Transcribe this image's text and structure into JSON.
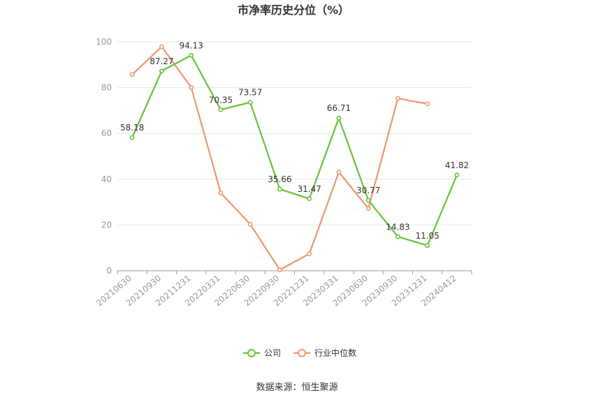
{
  "chart_data": {
    "type": "line",
    "title": "市净率历史分位（%）",
    "source": "数据来源：恒生聚源",
    "categories": [
      "20210630",
      "20210930",
      "20211231",
      "20220331",
      "20220630",
      "20220930",
      "20221231",
      "20230331",
      "20230630",
      "20230930",
      "20231231",
      "20240412"
    ],
    "ylim": [
      0,
      100
    ],
    "yticks": [
      0,
      20,
      40,
      60,
      80,
      100
    ],
    "grid": true,
    "legend_position": "bottom-center",
    "series": [
      {
        "name": "公司",
        "color": "#67c23a",
        "values": [
          58.18,
          87.27,
          94.13,
          70.35,
          73.57,
          35.66,
          31.47,
          66.71,
          30.77,
          14.83,
          11.05,
          41.82
        ],
        "labels": [
          "58.18",
          "87.27",
          "94.13",
          "70.35",
          "73.57",
          "35.66",
          "31.47",
          "66.71",
          "30.77",
          "14.83",
          "11.05",
          "41.82"
        ]
      },
      {
        "name": "行业中位数",
        "color": "#f0966c",
        "values": [
          85.7,
          97.9,
          80.1,
          34.0,
          20.3,
          0.4,
          7.4,
          43.1,
          27.2,
          75.3,
          72.9,
          null
        ]
      }
    ]
  }
}
